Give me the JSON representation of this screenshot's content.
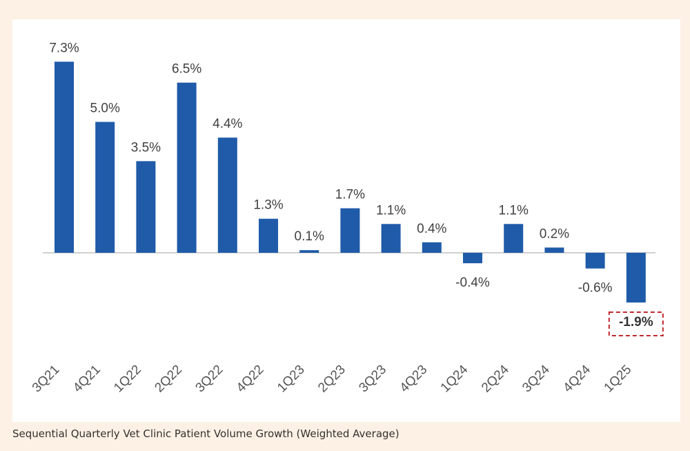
{
  "caption": "Sequential Quarterly Vet Clinic Patient Volume Growth (Weighted Average)",
  "colors": {
    "background": "#fdf1e5",
    "bar": "#1f5ba8",
    "highlight_box": "#c0282d",
    "zero_line": "#bfbfbf"
  },
  "chart_data": {
    "type": "bar",
    "categories": [
      "3Q21",
      "4Q21",
      "1Q22",
      "2Q22",
      "3Q22",
      "4Q22",
      "1Q23",
      "2Q23",
      "3Q23",
      "4Q23",
      "1Q24",
      "2Q24",
      "3Q24",
      "4Q24",
      "1Q25"
    ],
    "values": [
      7.3,
      5.0,
      3.5,
      6.5,
      4.4,
      1.3,
      0.1,
      1.7,
      1.1,
      0.4,
      -0.4,
      1.1,
      0.2,
      -0.6,
      -1.9
    ],
    "labels": [
      "7.3%",
      "5.0%",
      "3.5%",
      "6.5%",
      "4.4%",
      "1.3%",
      "0.1%",
      "1.7%",
      "1.1%",
      "0.4%",
      "-0.4%",
      "1.1%",
      "0.2%",
      "-0.6%",
      "-1.9%"
    ],
    "highlight_index": 14,
    "title": "",
    "xlabel": "",
    "ylabel": "",
    "ylim": [
      -1.9,
      7.3
    ],
    "grid": false,
    "legend": "none"
  }
}
